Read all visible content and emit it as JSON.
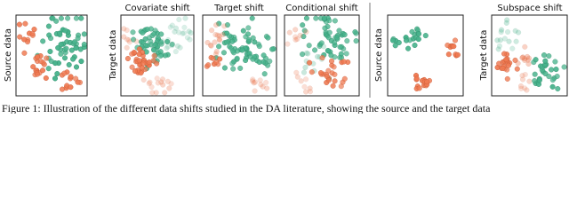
{
  "panels": [
    {
      "ylabel": "Source data"
    },
    {
      "title": "Covariate shift",
      "ylabel": "Target data"
    },
    {
      "title": "Target shift"
    },
    {
      "title": "Conditional shift"
    },
    {
      "ylabel": "Source data"
    },
    {
      "title": "Subspace shift",
      "ylabel": "Target data"
    }
  ],
  "caption": "Figure 1: Illustration of the different data shifts studied in the DA literature, showing the source and the target data"
}
